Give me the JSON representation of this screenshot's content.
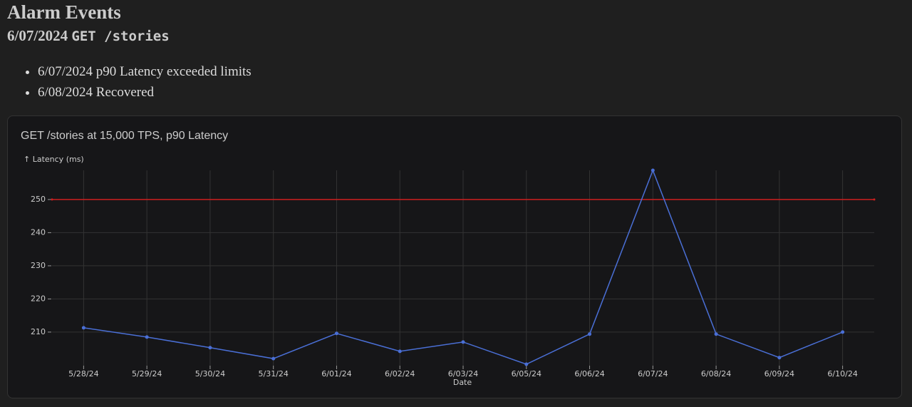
{
  "header": {
    "title": "Alarm Events",
    "date": "6/07/2024",
    "code": "GET /stories"
  },
  "list": [
    "6/07/2024 p90 Latency exceeded limits",
    "6/08/2024 Recovered"
  ],
  "chart_data": {
    "type": "line",
    "title": "GET /stories at 15,000 TPS, p90 Latency",
    "y_label": "↑ Latency (ms)",
    "x_label": "Date",
    "categories": [
      "5/28/24",
      "5/29/24",
      "5/30/24",
      "5/31/24",
      "6/01/24",
      "6/02/24",
      "6/03/24",
      "6/05/24",
      "6/06/24",
      "6/07/24",
      "6/08/24",
      "6/09/24",
      "6/10/24"
    ],
    "series": [
      {
        "name": "p90 Latency",
        "color": "#4a6fd6",
        "values": [
          211.3,
          208.5,
          205.3,
          202.0,
          209.6,
          204.2,
          207.0,
          200.3,
          209.4,
          258.8,
          209.4,
          202.3,
          210.0
        ]
      }
    ],
    "threshold": 250,
    "threshold_color": "#cc1f1f",
    "ylim": [
      200.3,
      258.8
    ],
    "yticks": [
      210,
      220,
      230,
      240,
      250
    ],
    "grid": true
  }
}
